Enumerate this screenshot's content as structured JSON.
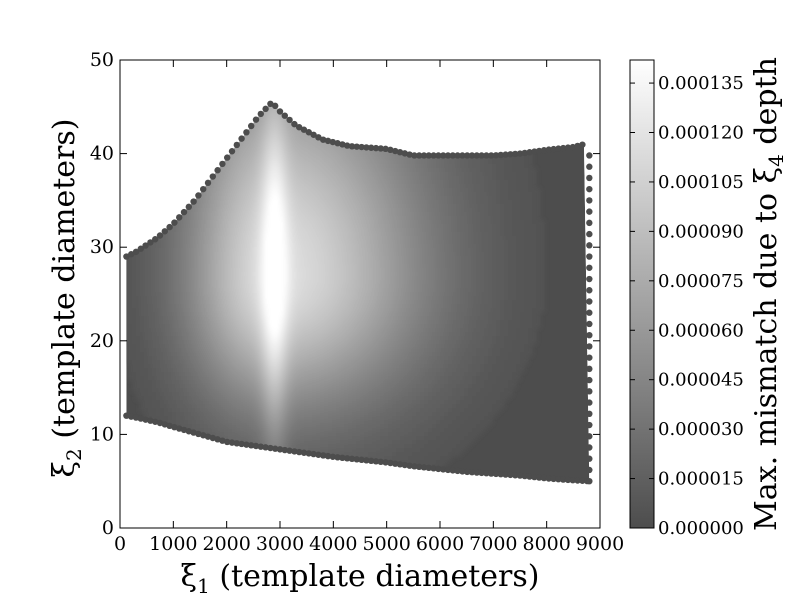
{
  "chart_data": {
    "type": "scatter",
    "description_mode": "colored point density map",
    "xlabel": {
      "symbol": "ξ",
      "sub": "1",
      "text": " (template diameters)"
    },
    "ylabel": {
      "symbol": "ξ",
      "sub": "2",
      "text": " (template diameters)"
    },
    "xlim": [
      0,
      9000
    ],
    "ylim": [
      0,
      50
    ],
    "x_ticks": [
      "0",
      "1000",
      "2000",
      "3000",
      "4000",
      "5000",
      "6000",
      "7000",
      "8000",
      "9000"
    ],
    "y_ticks": [
      "0",
      "10",
      "20",
      "30",
      "40",
      "50"
    ],
    "colorbar": {
      "label": {
        "prefix": "Max. mismatch due to ",
        "symbol": "ξ",
        "sub": "4",
        "suffix": " depth"
      },
      "range": [
        0.0,
        0.000142
      ],
      "ticks": [
        "0.000000",
        "0.000015",
        "0.000030",
        "0.000045",
        "0.000060",
        "0.000075",
        "0.000090",
        "0.000105",
        "0.000120",
        "0.000135"
      ],
      "tick_values": [
        0.0,
        1.5e-05,
        3e-05,
        4.5e-05,
        6e-05,
        7.5e-05,
        9e-05,
        0.000105,
        0.00012,
        0.000135
      ],
      "colormap": "gray",
      "color_low": "#4d4d4d",
      "color_high": "#ffffff"
    },
    "region": {
      "x_range": [
        120,
        8800
      ],
      "upper_boundary": [
        [
          120,
          29
        ],
        [
          300,
          29.5
        ],
        [
          700,
          31
        ],
        [
          1000,
          32.5
        ],
        [
          1400,
          35
        ],
        [
          1800,
          38
        ],
        [
          2200,
          41
        ],
        [
          2600,
          44
        ],
        [
          2850,
          45.5
        ],
        [
          3000,
          44.5
        ],
        [
          3300,
          43
        ],
        [
          3800,
          41.5
        ],
        [
          4300,
          40.8
        ],
        [
          5000,
          40.5
        ],
        [
          5500,
          39.8
        ],
        [
          6000,
          39.8
        ],
        [
          7000,
          39.8
        ],
        [
          7500,
          40
        ],
        [
          8000,
          40.4
        ],
        [
          8500,
          40.7
        ],
        [
          8700,
          41
        ]
      ],
      "lower_boundary": [
        [
          120,
          12
        ],
        [
          300,
          11.8
        ],
        [
          700,
          11.3
        ],
        [
          1000,
          10.8
        ],
        [
          1500,
          10.0
        ],
        [
          2000,
          9.2
        ],
        [
          2500,
          8.8
        ],
        [
          3000,
          8.4
        ],
        [
          3500,
          8.0
        ],
        [
          4000,
          7.6
        ],
        [
          4500,
          7.3
        ],
        [
          5000,
          7.0
        ],
        [
          5500,
          6.6
        ],
        [
          6000,
          6.3
        ],
        [
          6500,
          6.0
        ],
        [
          7000,
          5.8
        ],
        [
          7500,
          5.6
        ],
        [
          8000,
          5.3
        ],
        [
          8500,
          5.1
        ],
        [
          8800,
          5.0
        ]
      ],
      "peak_location": {
        "x": 2900,
        "y": 27
      },
      "peak_value": 0.000142
    }
  }
}
